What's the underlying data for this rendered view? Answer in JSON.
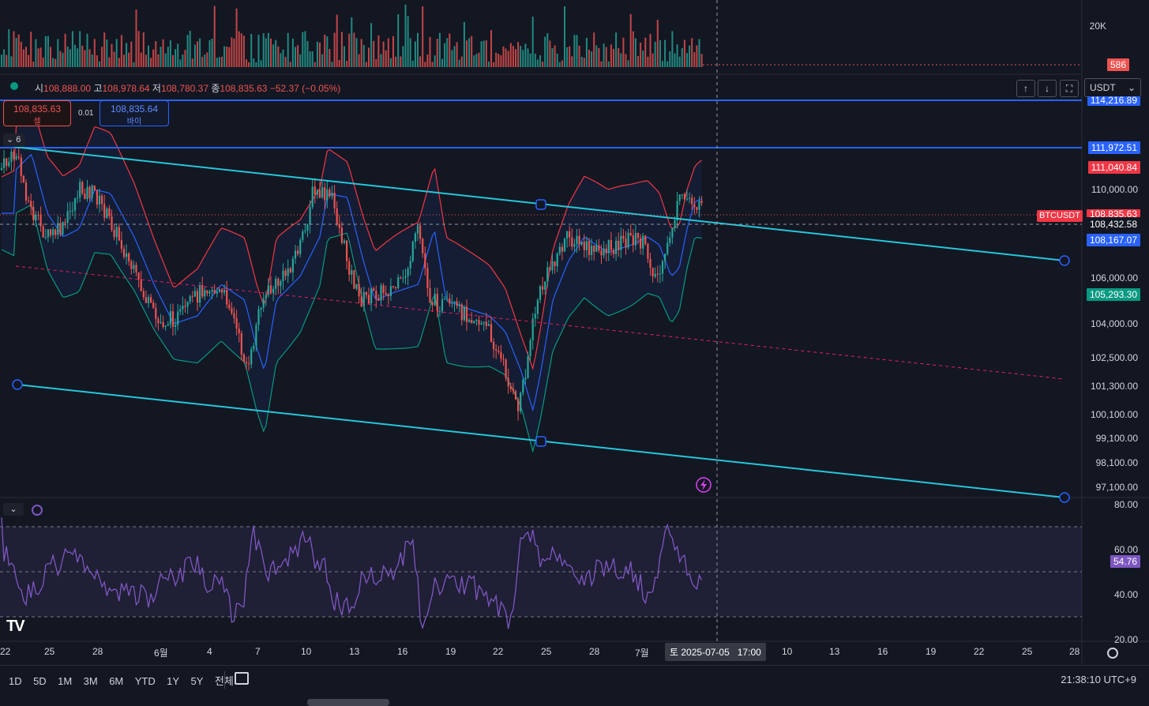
{
  "symbol": "BTCUSDT",
  "ohlc": {
    "open_label": "시",
    "open": "108,888.00",
    "high_label": "고",
    "high": "108,978.64",
    "low_label": "저",
    "low": "108,780.37",
    "close_label": "종",
    "close": "108,835.63",
    "change": "−52.37 (−0.05%)"
  },
  "trade_buttons": {
    "sell_price": "108,835.63",
    "sell_label": "셀",
    "spread": "0.01",
    "buy_price": "108,835.64",
    "buy_label": "바이"
  },
  "indicator_collapse": {
    "count": "6"
  },
  "currency_select": {
    "value": "USDT"
  },
  "volume_axis": {
    "top_label": "20K",
    "current": "586"
  },
  "price_axis": {
    "ticks": [
      "110,000.00",
      "106,000.00",
      "104,000.00",
      "102,500.00",
      "101,300.00",
      "100,100.00",
      "99,100.00",
      "98,100.00",
      "97,100.00"
    ],
    "tags": {
      "top_line": "114,216.89",
      "blue_line": "111,972.51",
      "bb_upper": "111,040.84",
      "symbol_badge": "BTCUSDT",
      "last_price": "108,835.63",
      "crosshair": "108,432.58",
      "bb_middle": "108,167.07",
      "bb_lower": "105,293.30"
    }
  },
  "rsi_axis": {
    "ticks": [
      "80.00",
      "60.00",
      "40.00",
      "20.00"
    ],
    "current": "54.76"
  },
  "time_axis": {
    "labels": [
      "22",
      "25",
      "28",
      "6월",
      "4",
      "7",
      "10",
      "13",
      "16",
      "19",
      "22",
      "25",
      "28",
      "7월",
      "10",
      "13",
      "16",
      "19",
      "22",
      "25",
      "28"
    ],
    "crosshair_label": "토 2025-07-05   17:00"
  },
  "timeframes": [
    "1D",
    "5D",
    "1M",
    "3M",
    "6M",
    "YTD",
    "1Y",
    "5Y",
    "전체"
  ],
  "clock": "21:38:10 UTC+9",
  "logo_text": "TV",
  "colors": {
    "background": "#131722",
    "up": "#26a69a",
    "down": "#ef5350",
    "channel": "#26c6da",
    "hline": "#2962ff",
    "bb_upper": "#f23645",
    "bb_lower": "#089981",
    "bb_mid": "#2962ff",
    "rsi": "#7e57c2"
  }
}
